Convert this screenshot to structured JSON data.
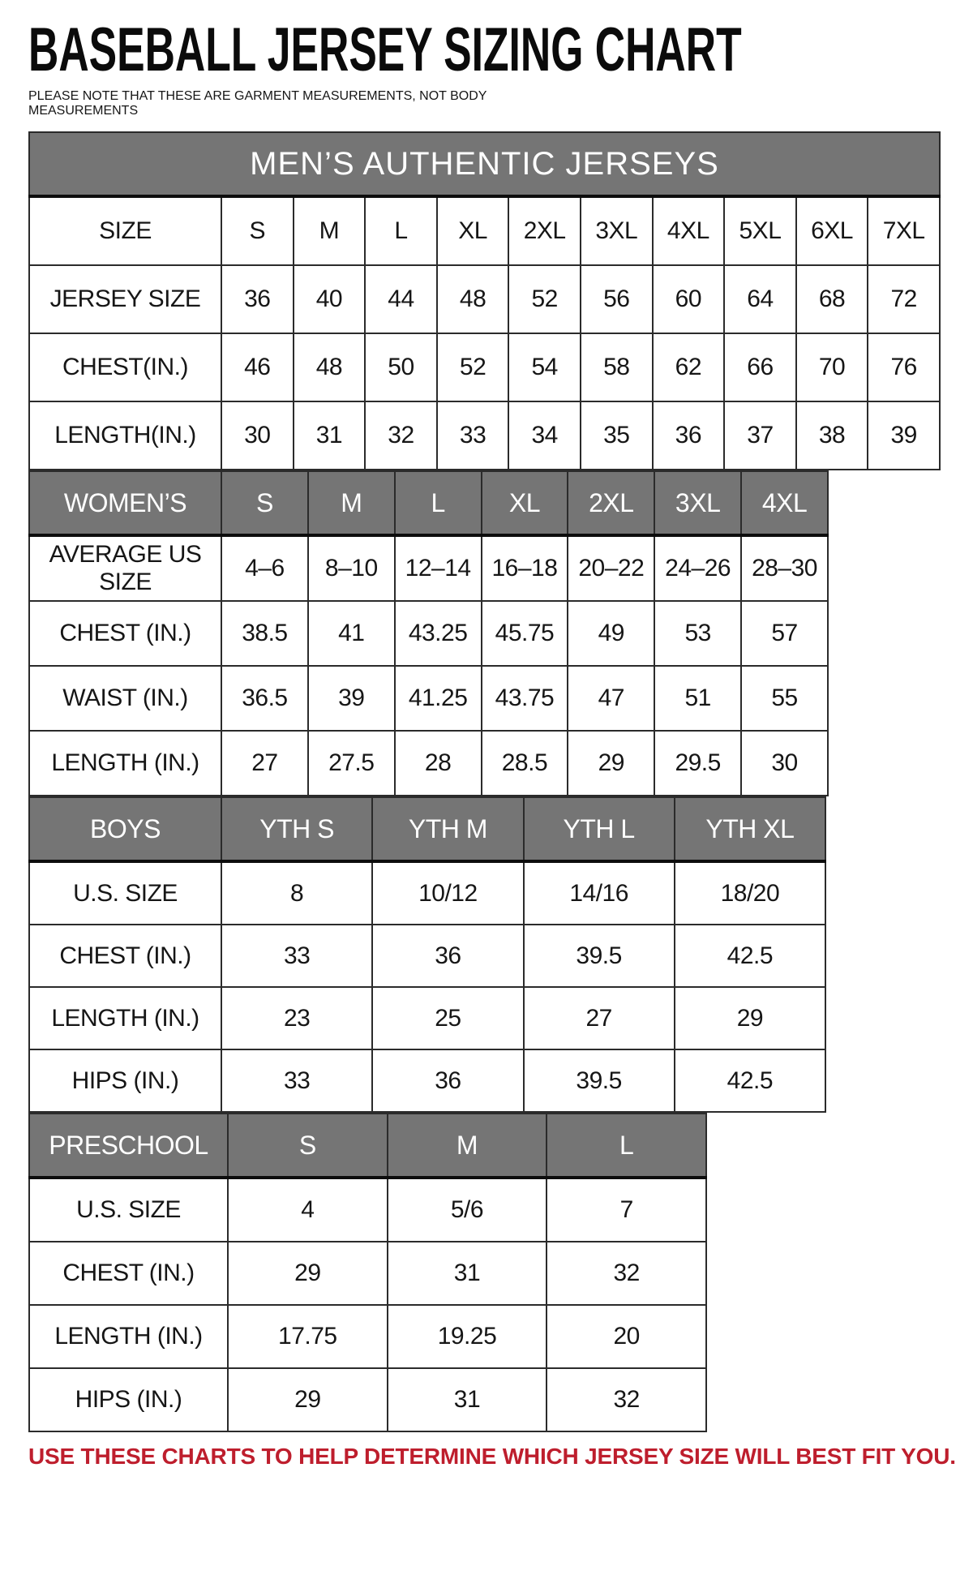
{
  "page": {
    "title": "BASEBALL JERSEY SIZING CHART",
    "note_lines": [
      "PLEASE NOTE THAT THESE ARE GARMENT MEASUREMENTS, NOT BODY",
      "MEASUREMENTS"
    ],
    "footer": "USE THESE CHARTS TO HELP DETERMINE WHICH JERSEY SIZE WILL BEST FIT YOU."
  },
  "colors": {
    "accent_red": "#BE1E2D",
    "header_gray": "#757575",
    "border_dark": "#2B2B2B",
    "text_dark": "#161616"
  },
  "chart_data": [
    {
      "type": "table",
      "name": "mens",
      "band_title": "MEN’S AUTHENTIC JERSEYS",
      "header_row": null,
      "rows": [
        [
          "SIZE",
          "S",
          "M",
          "L",
          "XL",
          "2XL",
          "3XL",
          "4XL",
          "5XL",
          "6XL",
          "7XL"
        ],
        [
          "JERSEY SIZE",
          "36",
          "40",
          "44",
          "48",
          "52",
          "56",
          "60",
          "64",
          "68",
          "72"
        ],
        [
          "CHEST(IN.)",
          "46",
          "48",
          "50",
          "52",
          "54",
          "58",
          "62",
          "66",
          "70",
          "76"
        ],
        [
          "LENGTH(IN.)",
          "30",
          "31",
          "32",
          "33",
          "34",
          "35",
          "36",
          "37",
          "38",
          "39"
        ]
      ]
    },
    {
      "type": "table",
      "name": "womens",
      "band_title": null,
      "header_row": [
        "WOMEN’S",
        "S",
        "M",
        "L",
        "XL",
        "2XL",
        "3XL",
        "4XL"
      ],
      "rows": [
        [
          "AVERAGE US SIZE",
          "4–6",
          "8–10",
          "12–14",
          "16–18",
          "20–22",
          "24–26",
          "28–30"
        ],
        [
          "CHEST (IN.)",
          "38.5",
          "41",
          "43.25",
          "45.75",
          "49",
          "53",
          "57"
        ],
        [
          "WAIST (IN.)",
          "36.5",
          "39",
          "41.25",
          "43.75",
          "47",
          "51",
          "55"
        ],
        [
          "LENGTH (IN.)",
          "27",
          "27.5",
          "28",
          "28.5",
          "29",
          "29.5",
          "30"
        ]
      ]
    },
    {
      "type": "table",
      "name": "boys",
      "band_title": null,
      "header_row": [
        "BOYS",
        "YTH S",
        "YTH M",
        "YTH L",
        "YTH XL"
      ],
      "rows": [
        [
          "U.S. SIZE",
          "8",
          "10/12",
          "14/16",
          "18/20"
        ],
        [
          "CHEST (IN.)",
          "33",
          "36",
          "39.5",
          "42.5"
        ],
        [
          "LENGTH (IN.)",
          "23",
          "25",
          "27",
          "29"
        ],
        [
          "HIPS (IN.)",
          "33",
          "36",
          "39.5",
          "42.5"
        ]
      ]
    },
    {
      "type": "table",
      "name": "preschool",
      "band_title": null,
      "header_row": [
        "PRESCHOOL",
        "S",
        "M",
        "L"
      ],
      "rows": [
        [
          "U.S. SIZE",
          "4",
          "5/6",
          "7"
        ],
        [
          "CHEST (IN.)",
          "29",
          "31",
          "32"
        ],
        [
          "LENGTH (IN.)",
          "17.75",
          "19.25",
          "20"
        ],
        [
          "HIPS (IN.)",
          "29",
          "31",
          "32"
        ]
      ]
    }
  ]
}
